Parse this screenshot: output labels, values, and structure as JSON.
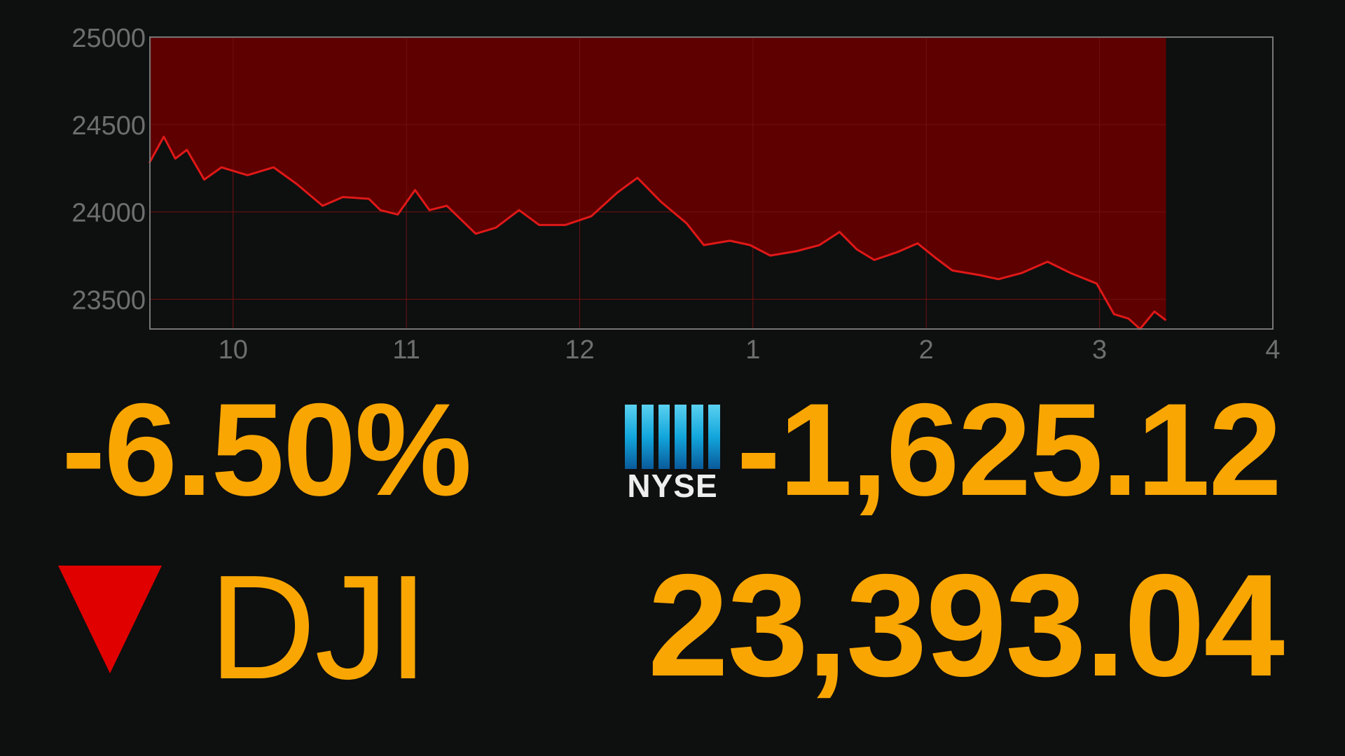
{
  "chart_data": {
    "type": "area",
    "title": "",
    "xlabel": "",
    "ylabel": "",
    "x_ticks": [
      "10",
      "11",
      "12",
      "1",
      "2",
      "3",
      "4"
    ],
    "x_tick_hours": [
      10,
      11,
      12,
      13,
      14,
      15,
      16
    ],
    "y_ticks": [
      25000,
      24500,
      24000,
      23500
    ],
    "xlim_hours": [
      9.52,
      16.0
    ],
    "ylim": [
      23330,
      25000
    ],
    "fill_above_line": true,
    "grid": true,
    "colors": {
      "line": "#e01818",
      "fill": "#5e0000",
      "axis": "#777777",
      "tick_text": "#6e6e6e"
    },
    "series": [
      {
        "time": [
          "9:31",
          "9:36",
          "9:40",
          "9:44",
          "9:50",
          "9:56",
          "10:05",
          "10:14",
          "10:22",
          "10:31",
          "10:38",
          "10:47",
          "10:51",
          "10:57",
          "11:03",
          "11:08",
          "11:14",
          "11:24",
          "11:31",
          "11:39",
          "11:46",
          "11:55",
          "12:04",
          "12:13",
          "12:20",
          "12:28",
          "12:37",
          "12:43",
          "12:52",
          "12:59",
          "13:06",
          "13:15",
          "13:23",
          "13:30",
          "13:36",
          "13:42",
          "13:50",
          "13:57",
          "14:03",
          "14:09",
          "14:18",
          "14:25",
          "14:33",
          "14:42",
          "14:50",
          "14:59",
          "15:05",
          "15:10",
          "15:14",
          "15:19",
          "15:23"
        ],
        "values": [
          24280,
          24430,
          24305,
          24355,
          24185,
          24255,
          24210,
          24255,
          24160,
          24035,
          24085,
          24075,
          24010,
          23985,
          24125,
          24010,
          24035,
          23875,
          23910,
          24010,
          23925,
          23925,
          23975,
          24110,
          24195,
          24060,
          23935,
          23810,
          23835,
          23810,
          23750,
          23775,
          23810,
          23885,
          23785,
          23725,
          23770,
          23820,
          23740,
          23665,
          23640,
          23615,
          23650,
          23715,
          23650,
          23590,
          23415,
          23390,
          23330,
          23430,
          23380
        ]
      }
    ]
  },
  "ticker": {
    "percent_change": "-6.50%",
    "point_change": "-1,625.12",
    "symbol": "DJI",
    "value": "23,393.04",
    "direction": "down",
    "exchange_logo": "NYSE",
    "colors": {
      "text": "#f9a602",
      "down_arrow": "#e00000"
    }
  }
}
